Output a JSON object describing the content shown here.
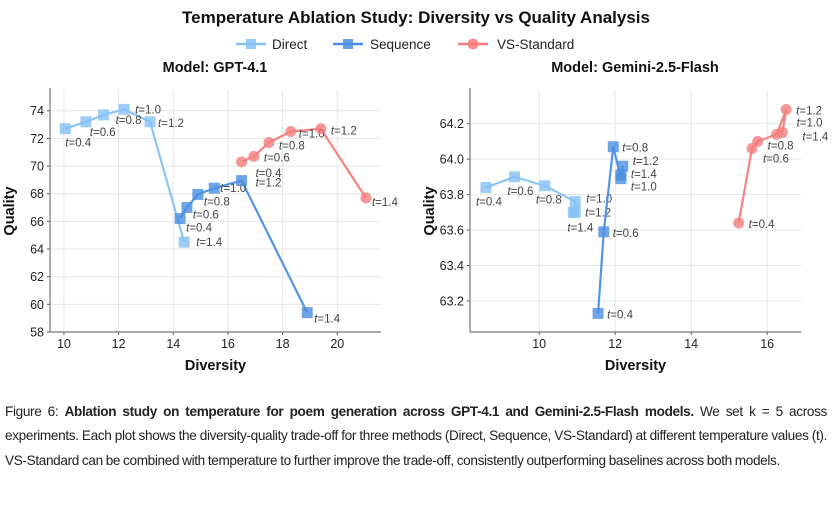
{
  "figure": {
    "title": "Temperature Ablation Study: Diversity vs Quality Analysis",
    "legend": [
      "Direct",
      "Sequence",
      "VS-Standard"
    ],
    "colors": {
      "Direct": "#85c1f5",
      "Sequence": "#4a8fe0",
      "VS-Standard": "#f47c7c"
    }
  },
  "chart_data": [
    {
      "type": "line",
      "title": "Model: GPT-4.1",
      "xlabel": "Diversity",
      "ylabel": "Quality",
      "xlim": [
        9.49,
        21.6
      ],
      "ylim": [
        58,
        75.5
      ],
      "xticks": [
        10,
        12,
        14,
        16,
        18,
        20
      ],
      "yticks": [
        58,
        60,
        62,
        64,
        66,
        68,
        70,
        72,
        74
      ],
      "grid": true,
      "legend_placement": "top-center",
      "series": [
        {
          "name": "Direct",
          "marker": "square",
          "points": [
            [
              10.05,
              72.7
            ],
            [
              10.8,
              73.2
            ],
            [
              11.45,
              73.7
            ],
            [
              12.2,
              74.1
            ],
            [
              13.15,
              73.2
            ],
            [
              14.4,
              64.5
            ]
          ],
          "labels": [
            "t=0.4",
            "t=0.6",
            "t=0.8",
            "t=1.0",
            "t=1.2",
            "t=1.4"
          ]
        },
        {
          "name": "Sequence",
          "marker": "square",
          "points": [
            [
              14.25,
              66.2
            ],
            [
              14.5,
              67.0
            ],
            [
              14.9,
              67.95
            ],
            [
              15.5,
              68.4
            ],
            [
              16.5,
              68.95
            ],
            [
              18.9,
              59.4
            ]
          ],
          "labels": [
            "t=0.4",
            "t=0.6",
            "t=0.8",
            "t=1.0",
            "t=1.2",
            "t=1.4"
          ]
        },
        {
          "name": "VS-Standard",
          "marker": "circle",
          "points": [
            [
              16.5,
              70.3
            ],
            [
              16.95,
              70.7
            ],
            [
              17.5,
              71.7
            ],
            [
              18.3,
              72.5
            ],
            [
              19.4,
              72.7
            ],
            [
              21.05,
              67.7
            ]
          ],
          "labels": [
            "t=0.4",
            "t=0.6",
            "t=0.8",
            "t=1.0",
            "t=1.2",
            "t=1.4"
          ]
        }
      ]
    },
    {
      "type": "line",
      "title": "Model: Gemini-2.5-Flash",
      "xlabel": "Diversity",
      "ylabel": "Quality",
      "xlim": [
        8.18,
        16.89
      ],
      "ylim": [
        63.025,
        64.39
      ],
      "xticks": [
        10,
        12,
        14,
        16
      ],
      "yticks": [
        63.2,
        63.4,
        63.6,
        63.8,
        64.0,
        64.2
      ],
      "grid": true,
      "series": [
        {
          "name": "Direct",
          "marker": "square",
          "points": [
            [
              8.6,
              63.84
            ],
            [
              9.35,
              63.9
            ],
            [
              10.15,
              63.85
            ],
            [
              10.95,
              63.76
            ],
            [
              10.95,
              63.7
            ],
            [
              10.9,
              63.7
            ]
          ],
          "labels": [
            "t=0.4",
            "t=0.6",
            "t=0.8",
            "t=1.0",
            "t=1.2",
            "t=1.4"
          ]
        },
        {
          "name": "Sequence",
          "marker": "square",
          "points": [
            [
              11.55,
              63.13
            ],
            [
              11.7,
              63.59
            ],
            [
              11.95,
              64.07
            ],
            [
              12.15,
              63.89
            ],
            [
              12.2,
              63.96
            ],
            [
              12.15,
              63.91
            ]
          ],
          "labels": [
            "t=0.4",
            "t=0.6",
            "t=0.8",
            "t=1.0",
            "t=1.2",
            "t=1.4"
          ]
        },
        {
          "name": "VS-Standard",
          "marker": "circle",
          "points": [
            [
              15.25,
              63.64
            ],
            [
              15.6,
              64.06
            ],
            [
              15.75,
              64.1
            ],
            [
              16.25,
              64.14
            ],
            [
              16.5,
              64.28
            ],
            [
              16.4,
              64.15
            ]
          ],
          "labels": [
            "t=0.4",
            "t=0.6",
            "t=0.8",
            "t=1.0",
            "t=1.2",
            "t=1.4"
          ]
        }
      ]
    }
  ],
  "caption": {
    "prefix": "Figure 6: ",
    "bold": "Ablation study on temperature for poem generation across GPT-4.1 and Gemini-2.5-Flash models.",
    "rest": " We set k = 5 across experiments. Each plot shows the diversity-quality trade-off for three methods (Direct, Sequence, VS-Standard) at different temperature values (t). VS-Standard can be combined with temperature to further improve the trade-off, consistently outperforming baselines across both models."
  }
}
